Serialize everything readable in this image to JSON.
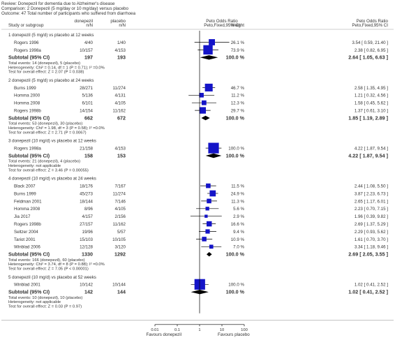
{
  "review": {
    "review_line": "Review:  Donepezil for dementia due to Alzheimer's disease",
    "comparison_line": "Comparison:  2 Donepezil (5 mg/day or 10 mg/day) versus placebo",
    "outcome_line": "Outcome:  47 Total number of participants who suffered from diarrhoea"
  },
  "columns": {
    "study": "Study or subgroup",
    "exp": [
      "donepezil",
      "n/N"
    ],
    "ctrl": [
      "placebo",
      "n/N"
    ],
    "plot": [
      "Peto Odds Ratio",
      "Peto,Fixed,95% CI"
    ],
    "weight": "Weight",
    "est": [
      "Peto Odds Ratio",
      "Peto,Fixed,95% CI"
    ]
  },
  "axis": {
    "ticks": [
      "0.01",
      "0.1",
      "1",
      "10",
      "100"
    ],
    "left_label": "Favours donepezil",
    "right_label": "Favours placebo"
  },
  "chart_data": {
    "type": "forest",
    "measure": "Peto Odds Ratio (Peto, Fixed, 95% CI)",
    "x_scale": "log",
    "xlim": [
      0.01,
      100
    ],
    "subgroups": [
      {
        "title": "1 donepezil (5 mg/d) vs placebo at 12 weeks",
        "studies": [
          {
            "name": "Rogers 1996",
            "exp": "4/40",
            "ctrl": "1/40",
            "weight": "26.1 %",
            "est": "3.54 [ 0.59, 21.40 ]",
            "or": 3.54,
            "lo": 0.59,
            "hi": 21.4,
            "w": 26.1
          },
          {
            "name": "Rogers 1998a",
            "exp": "10/157",
            "ctrl": "4/153",
            "weight": "73.9 %",
            "est": "2.38 [ 0.82, 6.95 ]",
            "or": 2.38,
            "lo": 0.82,
            "hi": 6.95,
            "w": 73.9
          }
        ],
        "subtotal": {
          "label": "Subtotal (95% CI)",
          "exp": "197",
          "ctrl": "193",
          "weight": "100.0 %",
          "est": "2.64 [ 1.05, 6.63 ]",
          "or": 2.64,
          "lo": 1.05,
          "hi": 6.63
        },
        "notes": [
          "Total events: 14 (donepezil), 5 (placebo)",
          "Heterogeneity: Chi² = 0.14, df = 1 (P = 0.71); I² =0.0%",
          "Test for overall effect: Z = 2.07 (P = 0.038)"
        ]
      },
      {
        "title": "2 donepezil (5 mg/d) vs placebo at 24 weeks",
        "studies": [
          {
            "name": "Burns 1999",
            "exp": "28/271",
            "ctrl": "11/274",
            "weight": "46.7 %",
            "est": "2.58 [ 1.35, 4.95 ]",
            "or": 2.58,
            "lo": 1.35,
            "hi": 4.95,
            "w": 46.7
          },
          {
            "name": "Homma 2000",
            "exp": "5/136",
            "ctrl": "4/131",
            "weight": "11.2 %",
            "est": "1.21 [ 0.32, 4.56 ]",
            "or": 1.21,
            "lo": 0.32,
            "hi": 4.56,
            "w": 11.2
          },
          {
            "name": "Homma 2008",
            "exp": "6/101",
            "ctrl": "4/105",
            "weight": "12.3 %",
            "est": "1.58 [ 0.45, 5.62 ]",
            "or": 1.58,
            "lo": 0.45,
            "hi": 5.62,
            "w": 12.3
          },
          {
            "name": "Rogers 1998b",
            "exp": "14/154",
            "ctrl": "11/162",
            "weight": "29.7 %",
            "est": "1.37 [ 0.61, 3.10 ]",
            "or": 1.37,
            "lo": 0.61,
            "hi": 3.1,
            "w": 29.7
          }
        ],
        "subtotal": {
          "label": "Subtotal (95% CI)",
          "exp": "662",
          "ctrl": "672",
          "weight": "100.0 %",
          "est": "1.85 [ 1.19, 2.89 ]",
          "or": 1.85,
          "lo": 1.19,
          "hi": 2.89
        },
        "notes": [
          "Total events: 53 (donepezil), 30 (placebo)",
          "Heterogeneity: Chi² = 1.98, df = 3 (P = 0.58); I² =0.0%",
          "Test for overall effect: Z = 2.71 (P = 0.0067)"
        ]
      },
      {
        "title": "3 donepezil (10 mg/d) vs placebo at 12 weeks",
        "studies": [
          {
            "name": "Rogers 1998a",
            "exp": "21/158",
            "ctrl": "4/153",
            "weight": "100.0 %",
            "est": "4.22 [ 1.87, 9.54 ]",
            "or": 4.22,
            "lo": 1.87,
            "hi": 9.54,
            "w": 100.0
          }
        ],
        "subtotal": {
          "label": "Subtotal (95% CI)",
          "exp": "158",
          "ctrl": "153",
          "weight": "100.0 %",
          "est": "4.22 [ 1.87, 9.54 ]",
          "or": 4.22,
          "lo": 1.87,
          "hi": 9.54
        },
        "notes": [
          "Total events: 21 (donepezil), 4 (placebo)",
          "Heterogeneity: not applicable",
          "Test for overall effect: Z = 3.46 (P = 0.00055)"
        ]
      },
      {
        "title": "4 donepezil (10 mg/d) vs placebo at 24 weeks",
        "studies": [
          {
            "name": "Black 2007",
            "exp": "18/176",
            "ctrl": "7/167",
            "weight": "11.5 %",
            "est": "2.44 [ 1.08, 5.50 ]",
            "or": 2.44,
            "lo": 1.08,
            "hi": 5.5,
            "w": 11.5
          },
          {
            "name": "Burns 1999",
            "exp": "45/273",
            "ctrl": "11/274",
            "weight": "24.9 %",
            "est": "3.87 [ 2.23, 6.73 ]",
            "or": 3.87,
            "lo": 2.23,
            "hi": 6.73,
            "w": 24.9
          },
          {
            "name": "Feldman 2001",
            "exp": "18/144",
            "ctrl": "7/146",
            "weight": "11.3 %",
            "est": "2.65 [ 1.17, 6.01 ]",
            "or": 2.65,
            "lo": 1.17,
            "hi": 6.01,
            "w": 11.3
          },
          {
            "name": "Homma 2008",
            "exp": "8/96",
            "ctrl": "4/105",
            "weight": "5.6 %",
            "est": "2.23 [ 0.70, 7.15 ]",
            "or": 2.23,
            "lo": 0.7,
            "hi": 7.15,
            "w": 5.6
          },
          {
            "name": "Jia 2017",
            "exp": "4/157",
            "ctrl": "2/156",
            "weight": "2.9 %",
            "est": "1.96 [ 0.39, 9.82 ]",
            "or": 1.96,
            "lo": 0.39,
            "hi": 9.82,
            "w": 2.9
          },
          {
            "name": "Rogers 1998b",
            "exp": "27/157",
            "ctrl": "11/162",
            "weight": "16.6 %",
            "est": "2.69 [ 1.37, 5.29 ]",
            "or": 2.69,
            "lo": 1.37,
            "hi": 5.29,
            "w": 16.6
          },
          {
            "name": "Seltzer 2004",
            "exp": "19/96",
            "ctrl": "5/57",
            "weight": "9.4 %",
            "est": "2.29 [ 0.93, 5.62 ]",
            "or": 2.29,
            "lo": 0.93,
            "hi": 5.62,
            "w": 9.4
          },
          {
            "name": "Tariot 2001",
            "exp": "15/103",
            "ctrl": "10/105",
            "weight": "10.9 %",
            "est": "1.61 [ 0.70, 3.70 ]",
            "or": 1.61,
            "lo": 0.7,
            "hi": 3.7,
            "w": 10.9
          },
          {
            "name": "Winblad 2006",
            "exp": "12/128",
            "ctrl": "3/120",
            "weight": "7.0 %",
            "est": "3.34 [ 1.18, 9.46 ]",
            "or": 3.34,
            "lo": 1.18,
            "hi": 9.46,
            "w": 7.0
          }
        ],
        "subtotal": {
          "label": "Subtotal (95% CI)",
          "exp": "1330",
          "ctrl": "1292",
          "weight": "100.0 %",
          "est": "2.69 [ 2.05, 3.55 ]",
          "or": 2.69,
          "lo": 2.05,
          "hi": 3.55
        },
        "notes": [
          "Total events: 166 (donepezil), 60 (placebo)",
          "Heterogeneity: Chi² = 3.74, df = 8 (P = 0.88); I² =0.0%",
          "Test for overall effect: Z = 7.05 (P < 0.00001)"
        ]
      },
      {
        "title": "5 donepezil (10 mg/d) vs placebo at 52 weeks",
        "studies": [
          {
            "name": "Winblad 2001",
            "exp": "10/142",
            "ctrl": "10/144",
            "weight": "100.0 %",
            "est": "1.02 [ 0.41, 2.52 ]",
            "or": 1.02,
            "lo": 0.41,
            "hi": 2.52,
            "w": 100.0
          }
        ],
        "subtotal": {
          "label": "Subtotal (95% CI)",
          "exp": "142",
          "ctrl": "144",
          "weight": "100.0 %",
          "est": "1.02 [ 0.41, 2.52 ]",
          "or": 1.02,
          "lo": 0.41,
          "hi": 2.52
        },
        "notes": [
          "Total events: 10 (donepezil), 10 (placebo)",
          "Heterogeneity: not applicable",
          "Test for overall effect: Z = 0.03 (P = 0.97)"
        ]
      }
    ]
  },
  "colors": {
    "square": "#1414c8",
    "diamond": "#000000",
    "text": "#333333",
    "rule": "#999999"
  }
}
